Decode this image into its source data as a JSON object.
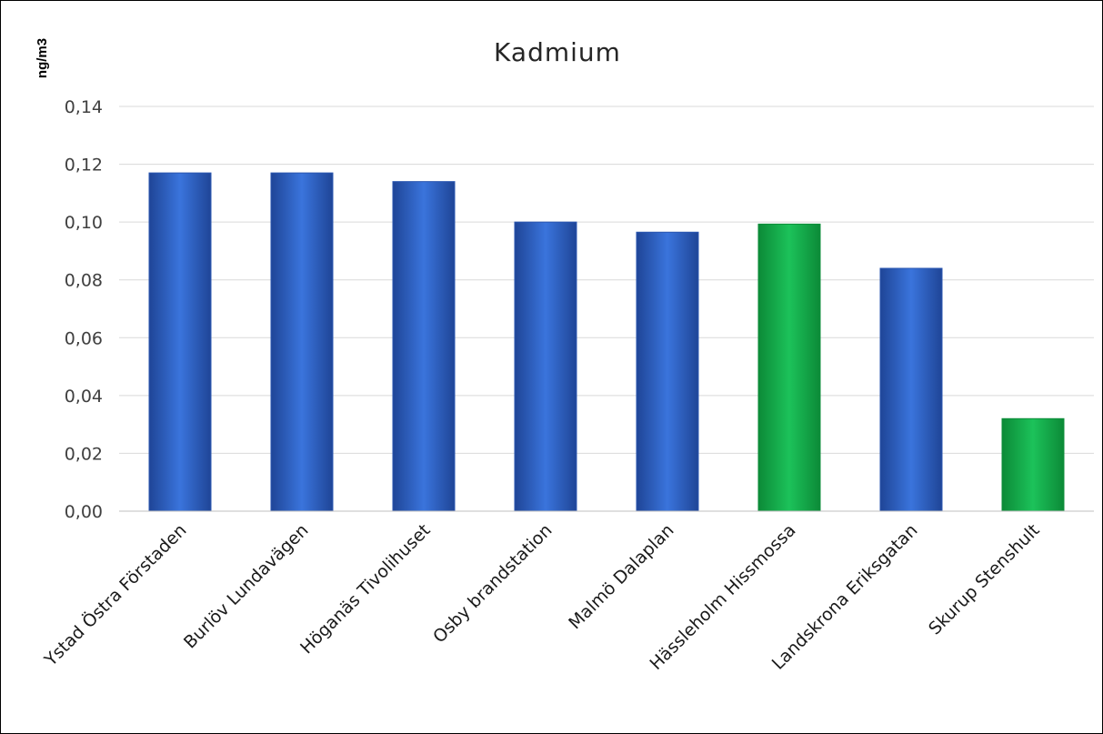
{
  "chart_data": {
    "type": "bar",
    "title": "Kadmium",
    "ylabel": "ng/m3",
    "xlabel": "",
    "ylim": [
      0,
      0.14
    ],
    "yticks": [
      "0,00",
      "0,02",
      "0,04",
      "0,06",
      "0,08",
      "0,10",
      "0,12",
      "0,14"
    ],
    "grid": true,
    "categories": [
      "Ystad Östra Förstaden",
      "Burlöv Lundavägen",
      "Höganäs Tivolihuset",
      "Osby brandstation",
      "Malmö Dalaplan",
      "Hässleholm Hissmossa",
      "Landskrona Eriksgatan",
      "Skurup Stenshult"
    ],
    "values": [
      0.117,
      0.117,
      0.114,
      0.1,
      0.0965,
      0.0993,
      0.084,
      0.032
    ],
    "bar_colors": [
      "#2f62c8",
      "#2f62c8",
      "#2f62c8",
      "#2f62c8",
      "#2f62c8",
      "#14b14b",
      "#2f62c8",
      "#14b14b"
    ]
  }
}
